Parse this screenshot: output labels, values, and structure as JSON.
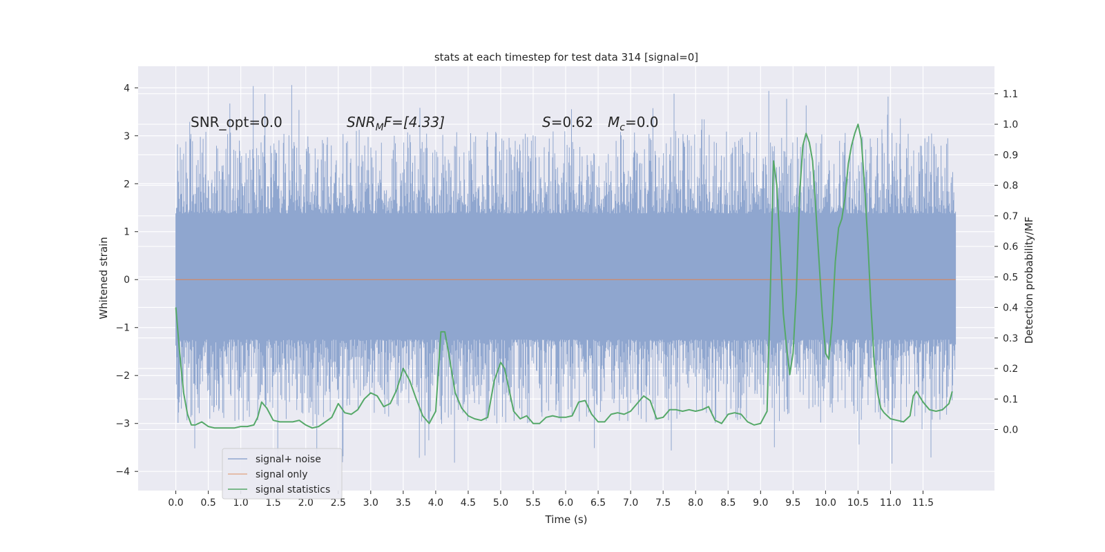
{
  "chart_data": {
    "type": "line",
    "title": "stats at each timestep for test data 314 [signal=0]",
    "xlabel": "Time (s)",
    "ylabel": "Whitened strain",
    "y2label": "Detection probability/MF",
    "xlim": [
      -0.58,
      12.6
    ],
    "ylim": [
      -4.4,
      4.45
    ],
    "y2lim": [
      -0.2,
      1.19
    ],
    "x_ticks": [
      0.0,
      0.5,
      1.0,
      1.5,
      2.0,
      2.5,
      3.0,
      3.5,
      4.0,
      4.5,
      5.0,
      5.5,
      6.0,
      6.5,
      7.0,
      7.5,
      8.0,
      8.5,
      9.0,
      9.5,
      10.0,
      10.5,
      11.0,
      11.5
    ],
    "x_tick_labels": [
      "0.0",
      "0.5",
      "1.0",
      "1.5",
      "2.0",
      "2.5",
      "3.0",
      "3.5",
      "4.0",
      "4.5",
      "5.0",
      "5.5",
      "6.0",
      "6.5",
      "7.0",
      "7.5",
      "8.0",
      "8.5",
      "9.0",
      "9.5",
      "10.0",
      "10.5",
      "11.0",
      "11.5"
    ],
    "y_ticks": [
      4,
      3,
      2,
      1,
      0,
      -1,
      -2,
      -3,
      -4
    ],
    "y_tick_labels": [
      "4",
      "3",
      "2",
      "1",
      "0",
      "−1",
      "−2",
      "−3",
      "−4"
    ],
    "y2_ticks": [
      1.1,
      1.0,
      0.9,
      0.8,
      0.7,
      0.6,
      0.5,
      0.4,
      0.3,
      0.2,
      0.1,
      0.0
    ],
    "y2_tick_labels": [
      "1.1",
      "1.0",
      "0.9",
      "0.8",
      "0.7",
      "0.6",
      "0.5",
      "0.4",
      "0.3",
      "0.2",
      "0.1",
      "0.0"
    ],
    "grid": true,
    "legend_position": "lower-left",
    "annotations": {
      "snr_opt": "SNR_opt=0.0",
      "snr_mf_main": "SNR",
      "snr_mf_sub": "M",
      "snr_mf_rest": "F=[4.33]",
      "s_main": "S",
      "s_rest": "=0.62",
      "mc_main": "M",
      "mc_sub": "c",
      "mc_rest": "=0.0"
    },
    "series": [
      {
        "name": "signal+ noise",
        "color": "#8fa6cf",
        "axis": "left",
        "x_range": [
          0.0,
          12.0
        ],
        "band_core": [
          -1.25,
          1.38
        ],
        "peak_max": 4.08,
        "peak_min": -3.88
      },
      {
        "name": "signal only",
        "color": "#dd8452",
        "axis": "left",
        "x": [
          0.0,
          12.0
        ],
        "y": [
          0.0,
          0.0
        ]
      },
      {
        "name": "signal statistics",
        "color": "#55a868",
        "axis": "right",
        "x": [
          0.0,
          0.06,
          0.12,
          0.18,
          0.24,
          0.3,
          0.4,
          0.5,
          0.6,
          0.7,
          0.8,
          0.9,
          1.0,
          1.1,
          1.2,
          1.26,
          1.32,
          1.4,
          1.5,
          1.6,
          1.7,
          1.8,
          1.9,
          2.0,
          2.1,
          2.2,
          2.3,
          2.4,
          2.5,
          2.6,
          2.7,
          2.8,
          2.9,
          3.0,
          3.1,
          3.2,
          3.3,
          3.4,
          3.5,
          3.6,
          3.7,
          3.8,
          3.9,
          4.0,
          4.08,
          4.14,
          4.2,
          4.3,
          4.4,
          4.5,
          4.6,
          4.7,
          4.8,
          4.9,
          5.0,
          5.06,
          5.1,
          5.2,
          5.3,
          5.4,
          5.5,
          5.6,
          5.7,
          5.8,
          5.9,
          6.0,
          6.1,
          6.2,
          6.3,
          6.4,
          6.5,
          6.6,
          6.7,
          6.8,
          6.9,
          7.0,
          7.1,
          7.2,
          7.3,
          7.4,
          7.5,
          7.6,
          7.7,
          7.8,
          7.9,
          8.0,
          8.1,
          8.2,
          8.3,
          8.4,
          8.5,
          8.6,
          8.7,
          8.8,
          8.9,
          9.0,
          9.1,
          9.15,
          9.2,
          9.25,
          9.3,
          9.35,
          9.4,
          9.45,
          9.5,
          9.55,
          9.6,
          9.65,
          9.7,
          9.75,
          9.8,
          9.85,
          9.9,
          9.95,
          10.0,
          10.05,
          10.1,
          10.15,
          10.2,
          10.25,
          10.3,
          10.35,
          10.4,
          10.45,
          10.5,
          10.55,
          10.6,
          10.65,
          10.7,
          10.75,
          10.8,
          10.85,
          10.9,
          10.95,
          11.0,
          11.1,
          11.2,
          11.3,
          11.35,
          11.4,
          11.5,
          11.6,
          11.7,
          11.8,
          11.9,
          11.95
        ],
        "y": [
          0.4,
          0.25,
          0.12,
          0.05,
          0.015,
          0.015,
          0.025,
          0.01,
          0.005,
          0.005,
          0.005,
          0.005,
          0.01,
          0.01,
          0.015,
          0.04,
          0.09,
          0.07,
          0.03,
          0.025,
          0.025,
          0.025,
          0.03,
          0.015,
          0.005,
          0.01,
          0.025,
          0.04,
          0.085,
          0.055,
          0.05,
          0.065,
          0.1,
          0.12,
          0.11,
          0.075,
          0.085,
          0.13,
          0.2,
          0.16,
          0.1,
          0.045,
          0.02,
          0.06,
          0.32,
          0.32,
          0.25,
          0.12,
          0.07,
          0.045,
          0.035,
          0.03,
          0.04,
          0.16,
          0.22,
          0.2,
          0.16,
          0.06,
          0.035,
          0.045,
          0.02,
          0.02,
          0.04,
          0.045,
          0.04,
          0.04,
          0.045,
          0.09,
          0.095,
          0.05,
          0.025,
          0.025,
          0.05,
          0.055,
          0.05,
          0.06,
          0.085,
          0.11,
          0.095,
          0.035,
          0.04,
          0.065,
          0.065,
          0.06,
          0.065,
          0.06,
          0.065,
          0.075,
          0.03,
          0.02,
          0.05,
          0.055,
          0.05,
          0.025,
          0.015,
          0.02,
          0.06,
          0.45,
          0.88,
          0.8,
          0.6,
          0.38,
          0.27,
          0.18,
          0.25,
          0.45,
          0.77,
          0.93,
          0.97,
          0.94,
          0.88,
          0.72,
          0.55,
          0.38,
          0.25,
          0.23,
          0.35,
          0.55,
          0.66,
          0.69,
          0.76,
          0.87,
          0.93,
          0.97,
          1.0,
          0.95,
          0.8,
          0.62,
          0.4,
          0.22,
          0.12,
          0.07,
          0.055,
          0.045,
          0.035,
          0.03,
          0.025,
          0.045,
          0.11,
          0.125,
          0.09,
          0.065,
          0.06,
          0.065,
          0.085,
          0.125
        ]
      }
    ]
  }
}
